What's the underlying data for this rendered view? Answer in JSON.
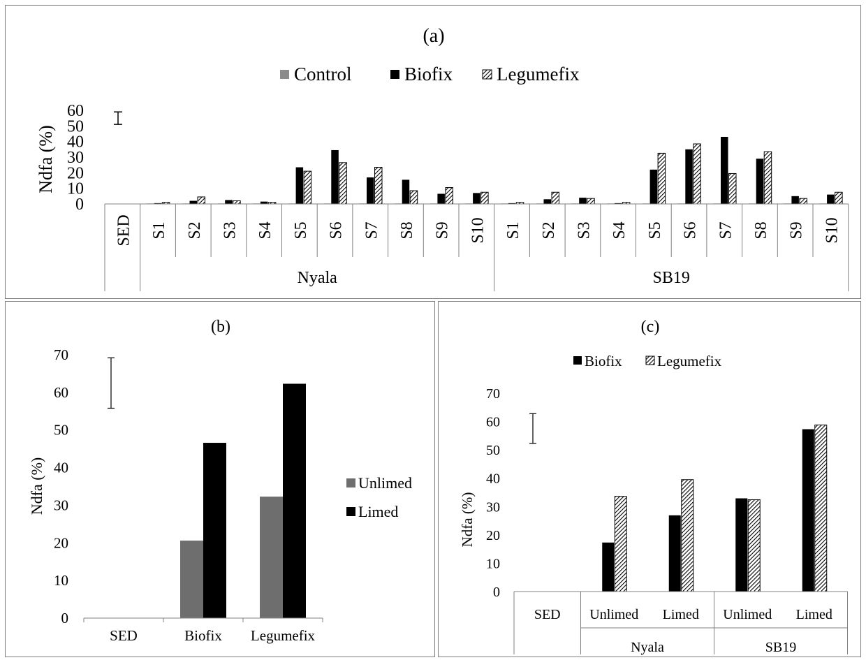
{
  "patterns": {
    "control": "#8c8c8c",
    "biofix": "#000000",
    "unlimed": "#6e6e6e",
    "limed": "#000000",
    "hatch_line": "#000000",
    "axis": "#808080"
  },
  "chart_data": [
    {
      "id": "a",
      "type": "bar",
      "title": "(a)",
      "ylabel": "Ndfa (%)",
      "ylim": [
        0,
        60
      ],
      "yticks": [
        "0",
        "10",
        "20",
        "30",
        "40",
        "50",
        "60"
      ],
      "legend_position": "top",
      "legend": [
        "Control",
        "Biofix",
        "Legumefix"
      ],
      "error_bar": {
        "label": "SED",
        "low": 51,
        "high": 59
      },
      "groups": [
        {
          "name": "Nyala",
          "categories": [
            "S1",
            "S2",
            "S3",
            "S4",
            "S5",
            "S6",
            "S7",
            "S8",
            "S9",
            "S10"
          ]
        },
        {
          "name": "SB19",
          "categories": [
            "S1",
            "S2",
            "S3",
            "S4",
            "S5",
            "S6",
            "S7",
            "S8",
            "S9",
            "S10"
          ]
        }
      ],
      "series": [
        {
          "name": "Control",
          "values": [
            0.3,
            0.3,
            0.3,
            0.3,
            0.3,
            0.3,
            0.3,
            0.3,
            0.3,
            0.3,
            0.3,
            0.3,
            0.3,
            0.3,
            0.3,
            0.3,
            0.3,
            0.3,
            0.3,
            0.3
          ]
        },
        {
          "name": "Biofix",
          "values": [
            0.5,
            2,
            2.5,
            1.5,
            23.5,
            34.5,
            17,
            15.5,
            6.5,
            7,
            0.5,
            3,
            4,
            0.5,
            22,
            35,
            43,
            29,
            5,
            6
          ]
        },
        {
          "name": "Legumefix",
          "values": [
            1,
            4.5,
            2,
            1,
            21,
            26.5,
            23.5,
            8.5,
            10.5,
            7.5,
            1,
            7.5,
            3.5,
            1,
            32.5,
            38.5,
            19.5,
            33.5,
            3.5,
            7.5
          ]
        }
      ]
    },
    {
      "id": "b",
      "type": "bar",
      "title": "(b)",
      "ylabel": "Ndfa (%)",
      "ylim": [
        0,
        70
      ],
      "yticks": [
        "0",
        "10",
        "20",
        "30",
        "40",
        "50",
        "60",
        "70"
      ],
      "legend_position": "right",
      "legend": [
        "Unlimed",
        "Limed"
      ],
      "categories": [
        "SED",
        "Biofix",
        "Legumefix"
      ],
      "error_bar": {
        "label": "SED",
        "low": 55.8,
        "high": 69.2
      },
      "series": [
        {
          "name": "Unlimed",
          "values": [
            null,
            20.6,
            32.3
          ]
        },
        {
          "name": "Limed",
          "values": [
            null,
            46.6,
            62.3
          ]
        }
      ]
    },
    {
      "id": "c",
      "type": "bar",
      "title": "(c)",
      "ylabel": "Ndfa (%)",
      "ylim": [
        0,
        70
      ],
      "yticks": [
        "0",
        "10",
        "20",
        "30",
        "40",
        "50",
        "60",
        "70"
      ],
      "legend_position": "top",
      "legend": [
        "Biofix",
        "Legumefix"
      ],
      "categories": [
        "SED",
        "Unlimed",
        "Limed",
        "Unlimed",
        "Limed"
      ],
      "groups": [
        {
          "name": "Nyala",
          "categories": [
            "Unlimed",
            "Limed"
          ]
        },
        {
          "name": "SB19",
          "categories": [
            "Unlimed",
            "Limed"
          ]
        }
      ],
      "error_bar": {
        "label": "SED",
        "low": 52.3,
        "high": 62.8
      },
      "series": [
        {
          "name": "Biofix",
          "values": [
            null,
            17.3,
            26.9,
            32.9,
            57.3
          ]
        },
        {
          "name": "Legumefix",
          "values": [
            null,
            33.6,
            39.5,
            32.4,
            58.8
          ]
        }
      ]
    }
  ]
}
